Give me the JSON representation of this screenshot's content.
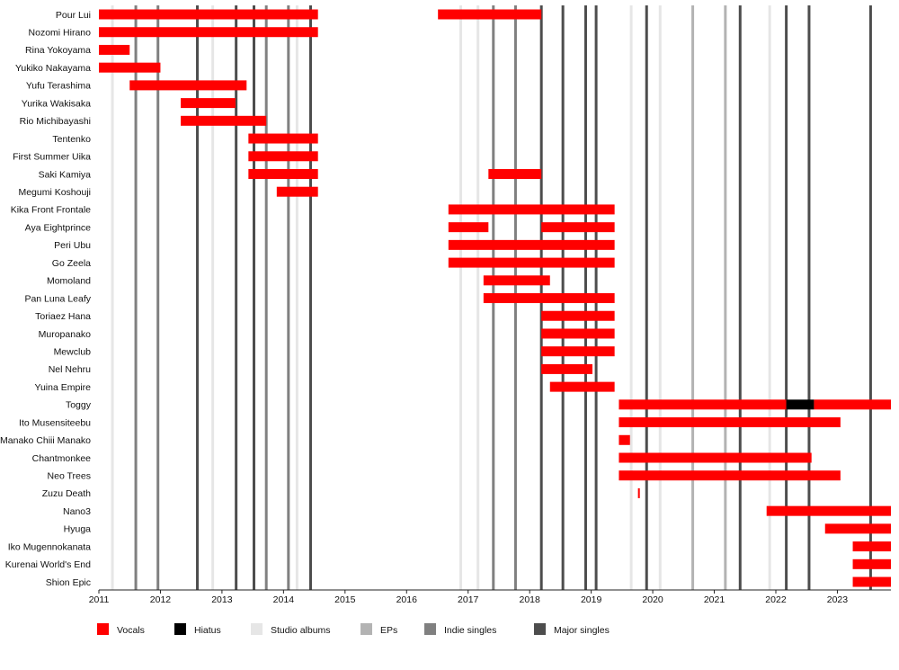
{
  "chart_data": {
    "type": "timeline",
    "x_range": [
      2011.0,
      2023.87
    ],
    "x_ticks": [
      "2011",
      "2012",
      "2013",
      "2014",
      "2015",
      "2016",
      "2017",
      "2018",
      "2019",
      "2020",
      "2021",
      "2022",
      "2023"
    ],
    "colors": {
      "Vocals": "#ff0000",
      "Hiatus": "#000000",
      "Studio albums": "#e6e6e6",
      "EPs": "#b3b3b3",
      "Indie singles": "#808080",
      "Major singles": "#4d4d4d"
    },
    "legend": [
      "Vocals",
      "Hiatus",
      "Studio albums",
      "EPs",
      "Indie singles",
      "Major singles"
    ],
    "release_lines": {
      "Studio albums": [
        2011.22,
        2012.85,
        2014.22,
        2016.88,
        2017.16,
        2019.65,
        2020.12,
        2021.9
      ],
      "EPs": [
        2020.65,
        2021.18
      ],
      "Indie singles": [
        2011.6,
        2011.96,
        2013.72,
        2014.08,
        2017.41,
        2017.77
      ],
      "Major singles": [
        2012.6,
        2013.23,
        2013.52,
        2014.44,
        2018.19,
        2018.54,
        2018.91,
        2019.08,
        2019.9,
        2021.42,
        2022.17,
        2022.54,
        2023.54
      ]
    },
    "members": [
      {
        "name": "Pour Lui",
        "bars": [
          {
            "start": 2011.0,
            "end": 2014.56,
            "type": "Vocals"
          },
          {
            "start": 2016.51,
            "end": 2018.19,
            "type": "Vocals"
          }
        ]
      },
      {
        "name": "Nozomi Hirano",
        "bars": [
          {
            "start": 2011.0,
            "end": 2014.56,
            "type": "Vocals"
          }
        ]
      },
      {
        "name": "Rina Yokoyama",
        "bars": [
          {
            "start": 2011.0,
            "end": 2011.5,
            "type": "Vocals"
          }
        ]
      },
      {
        "name": "Yukiko Nakayama",
        "bars": [
          {
            "start": 2011.0,
            "end": 2012.0,
            "type": "Vocals"
          }
        ]
      },
      {
        "name": "Yufu Terashima",
        "bars": [
          {
            "start": 2011.5,
            "end": 2013.4,
            "type": "Vocals"
          }
        ]
      },
      {
        "name": "Yurika Wakisaka",
        "bars": [
          {
            "start": 2012.33,
            "end": 2013.22,
            "type": "Vocals"
          }
        ]
      },
      {
        "name": "Rio Michibayashi",
        "bars": [
          {
            "start": 2012.33,
            "end": 2013.72,
            "type": "Vocals"
          }
        ]
      },
      {
        "name": "Tentenko",
        "bars": [
          {
            "start": 2013.43,
            "end": 2014.56,
            "type": "Vocals"
          }
        ]
      },
      {
        "name": "First Summer Uika",
        "bars": [
          {
            "start": 2013.43,
            "end": 2014.56,
            "type": "Vocals"
          }
        ]
      },
      {
        "name": "Saki Kamiya",
        "bars": [
          {
            "start": 2013.43,
            "end": 2014.56,
            "type": "Vocals"
          },
          {
            "start": 2017.33,
            "end": 2018.19,
            "type": "Vocals"
          }
        ]
      },
      {
        "name": "Megumi Koshouji",
        "bars": [
          {
            "start": 2013.89,
            "end": 2014.56,
            "type": "Vocals"
          }
        ]
      },
      {
        "name": "Kika Front Frontale",
        "bars": [
          {
            "start": 2016.68,
            "end": 2019.38,
            "type": "Vocals"
          }
        ]
      },
      {
        "name": "Aya Eightprince",
        "bars": [
          {
            "start": 2016.68,
            "end": 2017.33,
            "type": "Vocals"
          },
          {
            "start": 2018.19,
            "end": 2019.38,
            "type": "Vocals"
          }
        ]
      },
      {
        "name": "Peri Ubu",
        "bars": [
          {
            "start": 2016.68,
            "end": 2019.38,
            "type": "Vocals"
          }
        ]
      },
      {
        "name": "Go Zeela",
        "bars": [
          {
            "start": 2016.68,
            "end": 2019.38,
            "type": "Vocals"
          }
        ]
      },
      {
        "name": "Momoland",
        "bars": [
          {
            "start": 2017.25,
            "end": 2018.33,
            "type": "Vocals"
          }
        ]
      },
      {
        "name": "Pan Luna Leafy",
        "bars": [
          {
            "start": 2017.25,
            "end": 2019.38,
            "type": "Vocals"
          }
        ]
      },
      {
        "name": "Toriaez Hana",
        "bars": [
          {
            "start": 2018.19,
            "end": 2019.38,
            "type": "Vocals"
          }
        ]
      },
      {
        "name": "Muropanako",
        "bars": [
          {
            "start": 2018.19,
            "end": 2019.38,
            "type": "Vocals"
          }
        ]
      },
      {
        "name": "Mewclub",
        "bars": [
          {
            "start": 2018.19,
            "end": 2019.38,
            "type": "Vocals"
          }
        ]
      },
      {
        "name": "Nel Nehru",
        "bars": [
          {
            "start": 2018.19,
            "end": 2019.02,
            "type": "Vocals"
          }
        ]
      },
      {
        "name": "Yuina Empire",
        "bars": [
          {
            "start": 2018.33,
            "end": 2019.38,
            "type": "Vocals"
          }
        ]
      },
      {
        "name": "Toggy",
        "bars": [
          {
            "start": 2019.45,
            "end": 2022.17,
            "type": "Vocals"
          },
          {
            "start": 2022.17,
            "end": 2022.62,
            "type": "Hiatus"
          },
          {
            "start": 2022.62,
            "end": 2023.87,
            "type": "Vocals"
          }
        ]
      },
      {
        "name": "Ito Musensiteebu",
        "bars": [
          {
            "start": 2019.45,
            "end": 2023.05,
            "type": "Vocals"
          }
        ]
      },
      {
        "name": "Manako Chiii Manako",
        "bars": [
          {
            "start": 2019.45,
            "end": 2019.63,
            "type": "Vocals"
          }
        ]
      },
      {
        "name": "Chantmonkee",
        "bars": [
          {
            "start": 2019.45,
            "end": 2022.58,
            "type": "Vocals"
          }
        ]
      },
      {
        "name": "Neo Trees",
        "bars": [
          {
            "start": 2019.45,
            "end": 2023.05,
            "type": "Vocals"
          }
        ]
      },
      {
        "name": "Zuzu Death",
        "bars": [
          {
            "start": 2019.76,
            "end": 2019.79,
            "type": "Vocals"
          }
        ]
      },
      {
        "name": "Nano3",
        "bars": [
          {
            "start": 2021.85,
            "end": 2023.87,
            "type": "Vocals"
          }
        ]
      },
      {
        "name": "Hyuga",
        "bars": [
          {
            "start": 2022.8,
            "end": 2023.87,
            "type": "Vocals"
          }
        ]
      },
      {
        "name": "Iko Mugennokanata",
        "bars": [
          {
            "start": 2023.25,
            "end": 2023.87,
            "type": "Vocals"
          }
        ]
      },
      {
        "name": "Kurenai World's End",
        "bars": [
          {
            "start": 2023.25,
            "end": 2023.87,
            "type": "Vocals"
          }
        ]
      },
      {
        "name": "Shion Epic",
        "bars": [
          {
            "start": 2023.25,
            "end": 2023.87,
            "type": "Vocals"
          }
        ]
      }
    ]
  }
}
